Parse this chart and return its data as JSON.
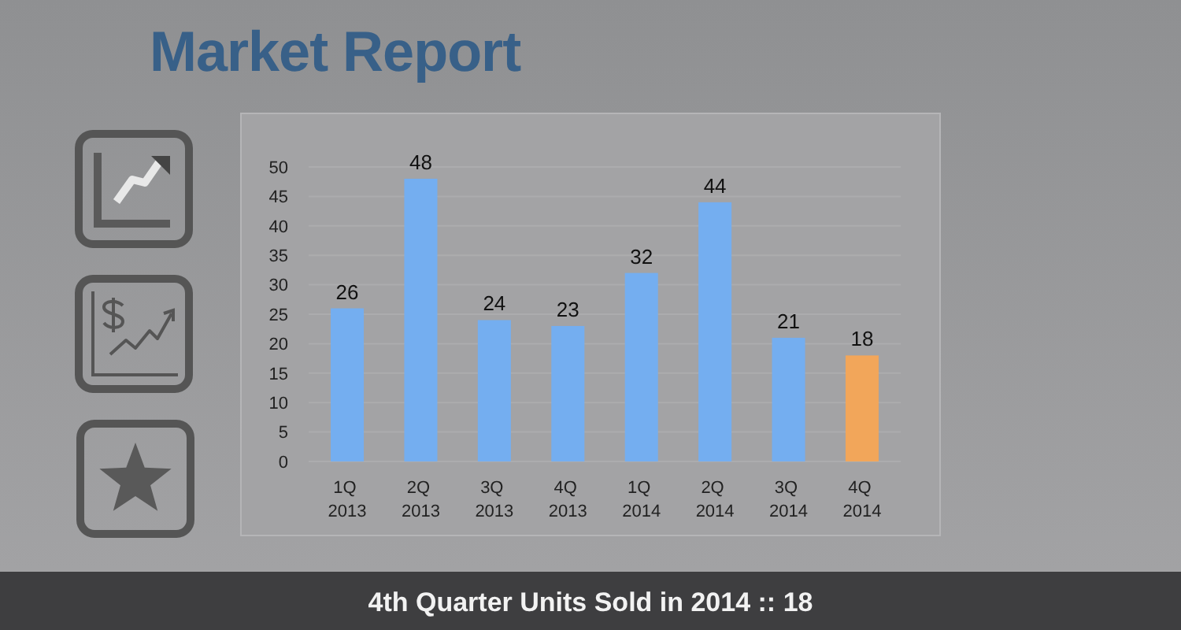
{
  "chart_data": {
    "type": "bar",
    "title": "Market Report",
    "categories": [
      "1Q 2013",
      "2Q 2013",
      "3Q 2013",
      "4Q 2013",
      "1Q 2014",
      "2Q 2014",
      "3Q 2014",
      "4Q 2014"
    ],
    "values": [
      26,
      48,
      24,
      23,
      32,
      44,
      21,
      18
    ],
    "colors": [
      "#74aef0",
      "#74aef0",
      "#74aef0",
      "#74aef0",
      "#74aef0",
      "#74aef0",
      "#74aef0",
      "#f2a65a"
    ],
    "ylim": [
      0,
      50
    ],
    "yticks": [
      0,
      5,
      10,
      15,
      20,
      25,
      30,
      35,
      40,
      45,
      50
    ],
    "grid": "y",
    "data_labels": true,
    "annotations": [
      "4th Quarter Units Sold in 2014 :: 18"
    ]
  }
}
